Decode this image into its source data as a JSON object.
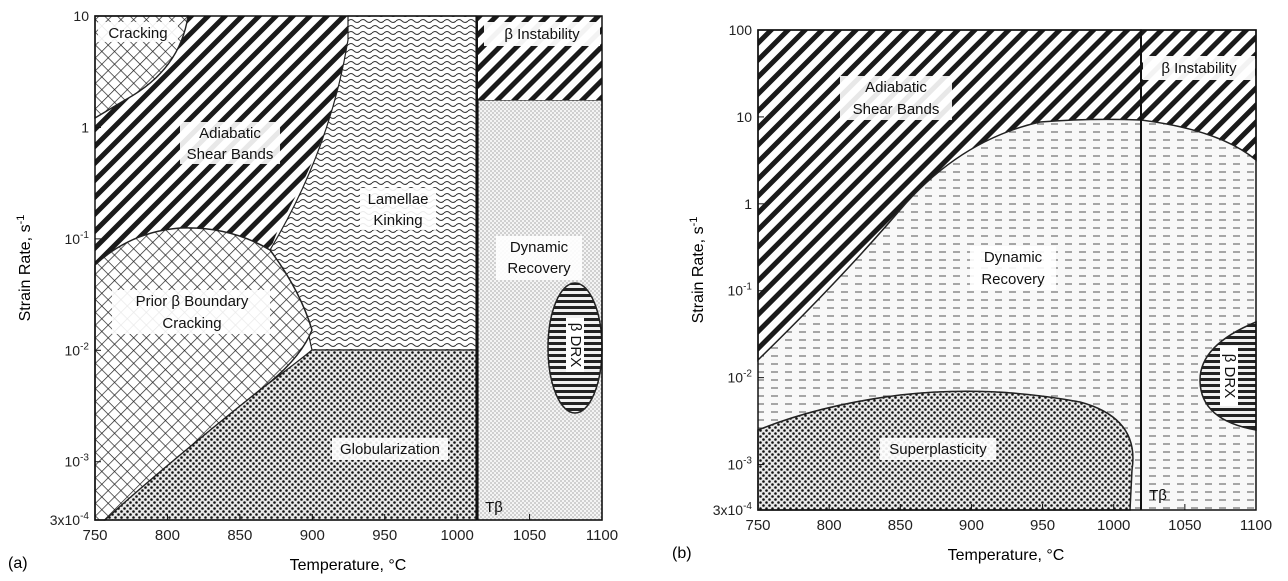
{
  "chart_data": [
    {
      "type": "area",
      "panel_label": "(a)",
      "xlabel": "Temperature, °C",
      "ylabel": "Strain Rate, s",
      "ylabel_sup": "-1",
      "x_ticks": [
        750,
        800,
        850,
        900,
        950,
        1000,
        1050,
        1100
      ],
      "y_scale": "log",
      "y_ticks": [
        {
          "value": 0.0003,
          "label": "3x10",
          "sup": "-4"
        },
        {
          "value": 0.001,
          "label": "10",
          "sup": "-3"
        },
        {
          "value": 0.01,
          "label": "10",
          "sup": "-2"
        },
        {
          "value": 0.1,
          "label": "10",
          "sup": "-1"
        },
        {
          "value": 1,
          "label": "1",
          "sup": ""
        },
        {
          "value": 10,
          "label": "10",
          "sup": ""
        }
      ],
      "xlim": [
        750,
        1100
      ],
      "ylim": [
        0.0003,
        10
      ],
      "beta_transus_label": "Tβ",
      "beta_transus_temperature": 1015,
      "regions": [
        {
          "name": "Cracking",
          "pattern": "crosshatch",
          "label": "Cracking"
        },
        {
          "name": "Adiabatic Shear Bands",
          "pattern": "diagonal",
          "label": [
            "Adiabatic",
            "Shear Bands"
          ]
        },
        {
          "name": "Lamellae Kinking",
          "pattern": "wavy",
          "label": [
            "Lamellae",
            "Kinking"
          ]
        },
        {
          "name": "Prior β Boundary Cracking",
          "pattern": "crosshatch",
          "label": [
            "Prior β Boundary",
            "Cracking"
          ]
        },
        {
          "name": "Globularization",
          "pattern": "dots",
          "label": [
            "Globularization"
          ]
        },
        {
          "name": "β Instability",
          "pattern": "diagonal",
          "label": [
            "β Instability"
          ]
        },
        {
          "name": "Dynamic Recovery",
          "pattern": "fine-dots",
          "label": [
            "Dynamic",
            "Recovery"
          ]
        },
        {
          "name": "β DRX",
          "pattern": "horizontal",
          "label": [
            "β DRX"
          ]
        }
      ]
    },
    {
      "type": "area",
      "panel_label": "(b)",
      "xlabel": "Temperature, °C",
      "ylabel": "Strain Rate, s",
      "ylabel_sup": "-1",
      "x_ticks": [
        750,
        800,
        850,
        900,
        950,
        1000,
        1050,
        1100
      ],
      "y_scale": "log",
      "y_ticks": [
        {
          "value": 0.0003,
          "label": "3x10",
          "sup": "-4"
        },
        {
          "value": 0.001,
          "label": "10",
          "sup": "-3"
        },
        {
          "value": 0.01,
          "label": "10",
          "sup": "-2"
        },
        {
          "value": 0.1,
          "label": "10",
          "sup": "-1"
        },
        {
          "value": 1,
          "label": "1",
          "sup": ""
        },
        {
          "value": 10,
          "label": "10",
          "sup": ""
        },
        {
          "value": 100,
          "label": "100",
          "sup": ""
        }
      ],
      "xlim": [
        750,
        1100
      ],
      "ylim": [
        0.0003,
        100
      ],
      "beta_transus_label": "Tβ",
      "beta_transus_temperature": 1015,
      "regions": [
        {
          "name": "Adiabatic Shear Bands",
          "pattern": "diagonal",
          "label": [
            "Adiabatic",
            "Shear Bands"
          ]
        },
        {
          "name": "β Instability",
          "pattern": "diagonal",
          "label": [
            "β Instability"
          ]
        },
        {
          "name": "Dynamic Recovery",
          "pattern": "dashes",
          "label": [
            "Dynamic",
            "Recovery"
          ]
        },
        {
          "name": "Superplasticity",
          "pattern": "dots",
          "label": [
            "Superplasticity"
          ]
        },
        {
          "name": "β DRX",
          "pattern": "horizontal",
          "label": [
            "β DRX"
          ]
        }
      ]
    }
  ]
}
